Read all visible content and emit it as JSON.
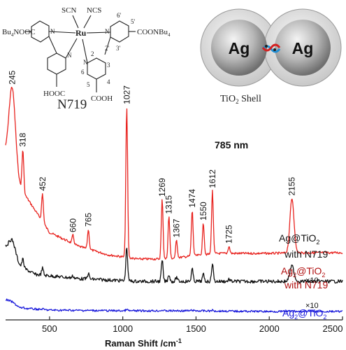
{
  "molecule": {
    "name": "N719",
    "ligands": [
      "SCN",
      "NCS"
    ],
    "metal": "Ru",
    "groups": [
      "Bu4NOOC",
      "COONBu4",
      "HOOC",
      "COOH"
    ],
    "ring_numbers": [
      "6'",
      "5'",
      "3'",
      "2'",
      "2",
      "3",
      "6",
      "5",
      "4"
    ],
    "atom_n": "N"
  },
  "nanostructure": {
    "particle_label": "Ag",
    "shell_label": "TiO",
    "shell_sub": "2",
    "shell_suffix": " Shell"
  },
  "chart_data": {
    "type": "line",
    "title": "785 nm",
    "xlabel": "Raman Shift /cm",
    "xlabel_sup": "-1",
    "xlim": [
      200,
      2500
    ],
    "xticks": [
      500,
      1000,
      1500,
      2000,
      2500
    ],
    "grid": false,
    "peaks": [
      245,
      318,
      452,
      660,
      765,
      1027,
      1269,
      1315,
      1367,
      1474,
      1550,
      1612,
      1725,
      2155
    ],
    "series": [
      {
        "name_line1": "Ag@TiO",
        "name_sub": "2",
        "name_line2": "with N719",
        "color": "#e8231f",
        "label_color": "#111111",
        "scale": "",
        "baseline": [
          [
            200,
            222
          ],
          [
            300,
            268
          ],
          [
            400,
            300
          ],
          [
            500,
            332
          ],
          [
            700,
            352
          ],
          [
            900,
            364
          ],
          [
            1100,
            370
          ],
          [
            1300,
            370
          ],
          [
            1500,
            365
          ],
          [
            1650,
            362
          ],
          [
            1800,
            362
          ],
          [
            2000,
            362
          ],
          [
            2300,
            361
          ],
          [
            2500,
            361
          ]
        ],
        "intensities": [
          118,
          60,
          40,
          12,
          28,
          215,
          85,
          60,
          25,
          65,
          45,
          90,
          10,
          78
        ]
      },
      {
        "name_line1": "Ag",
        "name_sub1": "2",
        "name_mid": "@TiO",
        "name_sub": "2",
        "name_line2": "with N719",
        "color": "#111111",
        "label_color": "#b01010",
        "scale": "×10",
        "baseline": [
          [
            200,
            353
          ],
          [
            300,
            380
          ],
          [
            400,
            392
          ],
          [
            500,
            394
          ],
          [
            700,
            398
          ],
          [
            900,
            400
          ],
          [
            1100,
            402
          ],
          [
            1300,
            402
          ],
          [
            1500,
            402
          ],
          [
            1700,
            402
          ],
          [
            2000,
            402
          ],
          [
            2300,
            402
          ],
          [
            2500,
            402
          ]
        ],
        "intensities": [
          22,
          12,
          10,
          3,
          8,
          48,
          30,
          10,
          6,
          18,
          10,
          26,
          3,
          22
        ]
      },
      {
        "name_line1": "Ag",
        "name_sub1": "2",
        "name_mid": "@TiO",
        "name_sub": "2",
        "name_line2": "",
        "color": "#1a1adb",
        "label_color": "#1a1adb",
        "scale": "×10",
        "baseline": [
          [
            200,
            428
          ],
          [
            300,
            440
          ],
          [
            500,
            443
          ],
          [
            1000,
            444
          ],
          [
            1500,
            444
          ],
          [
            2000,
            445
          ],
          [
            2500,
            445
          ]
        ],
        "intensities": [
          2,
          1,
          1,
          0,
          0,
          2,
          1,
          0,
          0,
          1,
          0,
          1,
          0,
          1
        ]
      }
    ]
  }
}
